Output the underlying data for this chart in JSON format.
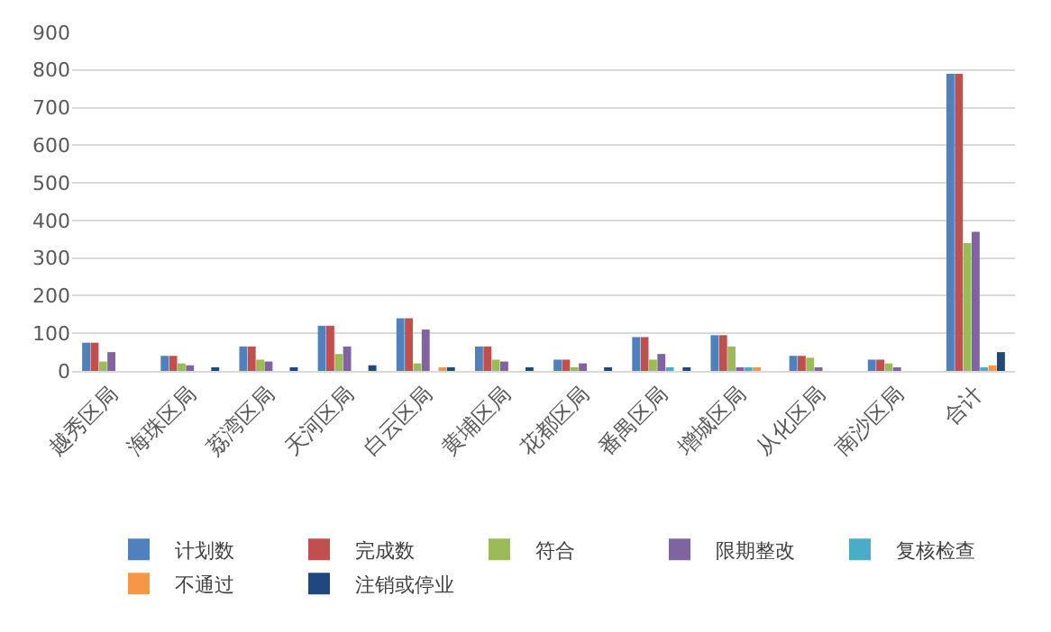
{
  "chart_data": {
    "type": "bar",
    "categories": [
      "越秀区局",
      "海珠区局",
      "荔湾区局",
      "天河区局",
      "白云区局",
      "黄埔区局",
      "花都区局",
      "番禺区局",
      "增城区局",
      "从化区局",
      "南沙区局",
      "合计"
    ],
    "series": [
      {
        "name": "计划数",
        "color": "#4f81bd",
        "values": [
          75,
          40,
          65,
          120,
          140,
          65,
          30,
          90,
          95,
          40,
          30,
          790
        ]
      },
      {
        "name": "完成数",
        "color": "#c0504d",
        "values": [
          75,
          40,
          65,
          120,
          140,
          65,
          30,
          90,
          95,
          40,
          30,
          790
        ]
      },
      {
        "name": "符合",
        "color": "#9bbb59",
        "values": [
          25,
          20,
          30,
          45,
          20,
          30,
          10,
          30,
          65,
          35,
          20,
          340
        ]
      },
      {
        "name": "限期整改",
        "color": "#8064a2",
        "values": [
          50,
          15,
          25,
          65,
          110,
          25,
          20,
          45,
          5,
          5,
          5,
          370
        ]
      },
      {
        "name": "复核检查",
        "color": "#4bacc6",
        "values": [
          null,
          null,
          null,
          null,
          null,
          null,
          null,
          5,
          5,
          null,
          null,
          5
        ]
      },
      {
        "name": "不通过",
        "color": "#f79646",
        "values": [
          null,
          null,
          null,
          null,
          8,
          null,
          null,
          null,
          5,
          null,
          null,
          15
        ]
      },
      {
        "name": "注销或停业",
        "color": "#1f497d",
        "values": [
          null,
          8,
          8,
          15,
          8,
          8,
          8,
          5,
          null,
          null,
          null,
          50
        ]
      }
    ],
    "ylim": [
      0,
      900
    ],
    "yticks": [
      0,
      100,
      200,
      300,
      400,
      500,
      600,
      700,
      800,
      900
    ],
    "grid": "y",
    "legend": "bottom"
  }
}
